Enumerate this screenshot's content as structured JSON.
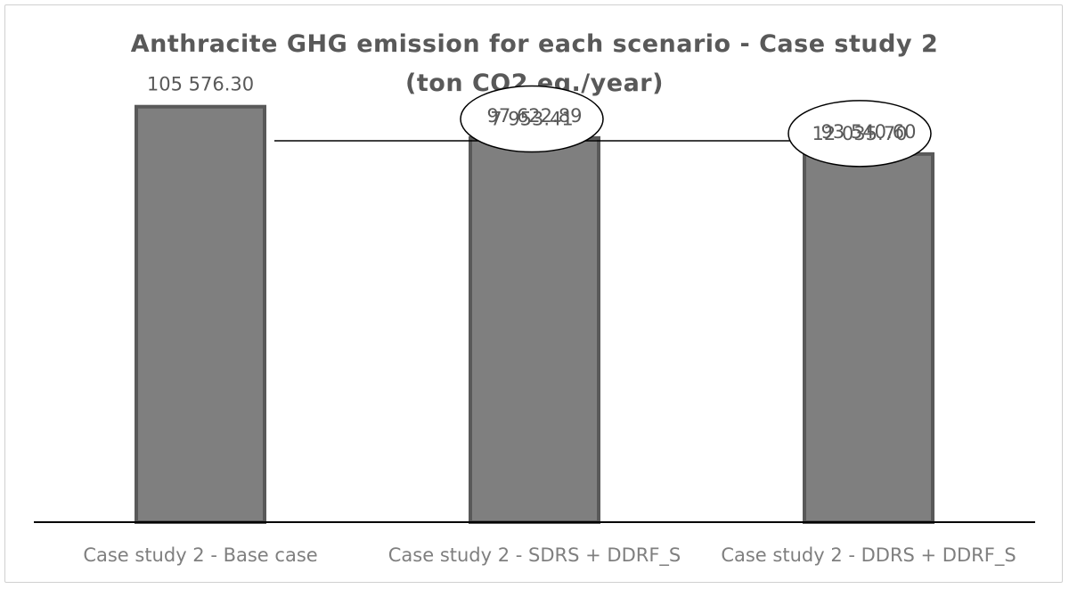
{
  "chart_data": {
    "type": "bar",
    "title": "Anthracite GHG emission for each scenario - Case study 2",
    "subtitle": "(ton CO2 eq./year)",
    "categories": [
      "Case study 2 - Base case",
      "Case study 2 - SDRS + DDRF_S",
      "Case study 2 - DDRS + DDRF_S"
    ],
    "values": [
      105576.3,
      97622.89,
      93540.6
    ],
    "value_labels": [
      "105 576.30",
      "97 622.89",
      "93 540.60"
    ],
    "annotations": [
      {
        "from": 0,
        "to": 1,
        "difference": 7953.41,
        "label": "7 953.41"
      },
      {
        "from": 0,
        "to": 2,
        "difference": 12035.7,
        "label": "12 035.70"
      }
    ],
    "ylim": [
      0,
      120000
    ],
    "xlabel": "",
    "ylabel": "",
    "grid": false,
    "legend": "none",
    "colors": {
      "bar_fill": "#7f7f7f",
      "bar_border": "#595959",
      "axis": "#000000",
      "connector": "#000000"
    }
  }
}
